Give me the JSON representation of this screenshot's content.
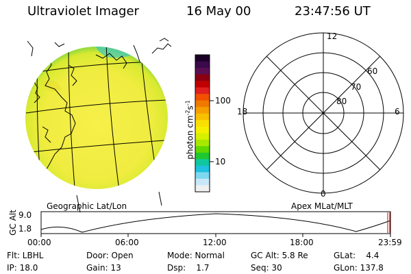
{
  "header": {
    "instrument": "Ultraviolet Imager",
    "date": "16 May 00",
    "time": "23:47:56 UT"
  },
  "colorbar": {
    "label": "photon cm",
    "label_sup1": "-2",
    "label_mid": "s",
    "label_sup2": "-1",
    "ticks": [
      "100",
      "10"
    ],
    "colors": [
      "#1a0026",
      "#3a0a4a",
      "#5a1050",
      "#8a0010",
      "#c00000",
      "#e02020",
      "#f05000",
      "#f07a00",
      "#f5a000",
      "#f8c000",
      "#fae000",
      "#f5f000",
      "#d8f000",
      "#a8e800",
      "#60d800",
      "#20c830",
      "#10c8a0",
      "#20c0e0",
      "#80d8f0",
      "#c8e8f8",
      "#f0f0f0"
    ]
  },
  "geo_panel": {
    "caption": "Geographic Lat/Lon"
  },
  "apex_panel": {
    "caption": "Apex MLat/MLT",
    "mlt_labels": {
      "top": "12",
      "left": "18",
      "right": "6",
      "bottom": "0"
    },
    "lat_labels": [
      "60",
      "70",
      "80"
    ]
  },
  "timeline": {
    "ylabel": "GC Alt",
    "ymax": "9.0",
    "ymin": "1.8",
    "ticks": [
      "00:00",
      "06:00",
      "12:00",
      "18:00",
      "23:59"
    ]
  },
  "stats": {
    "flt": "Flt: LBHL",
    "ip": "IP: 18.0",
    "door": "Door: Open",
    "gain": "Gain: 13",
    "mode": "Mode: Normal",
    "dsp": "Dsp:    1.7",
    "gcalt": "GC Alt: 5.8 Re",
    "seq": "Seq: 30",
    "glat": "GLat:    4.4",
    "glon": "GLon: 137.8"
  }
}
